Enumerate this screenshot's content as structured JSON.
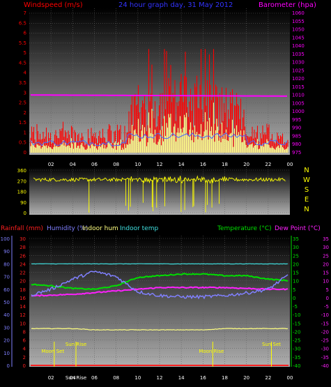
{
  "colors": {
    "wind": "#ff0000",
    "gust": "#ffff88",
    "avg": "#4466ff",
    "baro": "#ff00ff",
    "title": "#3333ff",
    "dir": "#ffff00",
    "rain": "#ff2020",
    "hum": "#8080ff",
    "inhum": "#ffff80",
    "intemp": "#40e0e0",
    "temp": "#00e000",
    "dew": "#ff20ff",
    "grid": "#606060",
    "axis": "#ffffff"
  },
  "header": {
    "left": "Windspeed (m/s)",
    "center": "24 hour graph day, 31 May 2012",
    "right": "Barometer (hpa)"
  },
  "hours": [
    "02",
    "04",
    "06",
    "08",
    "10",
    "12",
    "14",
    "16",
    "18",
    "20",
    "22",
    "00"
  ],
  "panel1": {
    "left_ticks": [
      "7",
      "6.5",
      "6",
      "5.5",
      "5",
      "4.5",
      "4",
      "3.5",
      "3",
      "2.5",
      "2",
      "1.5",
      "1",
      "0.5",
      "0"
    ],
    "right_ticks": [
      "1060",
      "1055",
      "1050",
      "1045",
      "1040",
      "1035",
      "1030",
      "1025",
      "1020",
      "1015",
      "1010",
      "1005",
      "1000",
      "995",
      "990",
      "985",
      "980",
      "975"
    ],
    "barometer": 1010
  },
  "panel2": {
    "left_ticks": [
      "360",
      "270",
      "180",
      "90",
      "0"
    ],
    "compass": [
      "N",
      "W",
      "S",
      "E",
      "N"
    ],
    "mean_dir": 280
  },
  "panel3": {
    "labels": {
      "rain": "Rainfall (mm)",
      "hum": "Humidity (%)",
      "inhum": "Indoor hum",
      "intemp": "Indoor temp",
      "temp": "Temperature (°C)",
      "dew": "Dew Point (°C)"
    },
    "hum_ticks": [
      "100",
      "90",
      "80",
      "70",
      "60",
      "50",
      "40",
      "30",
      "20",
      "10",
      "0"
    ],
    "rain_ticks": [
      "30",
      "28",
      "26",
      "24",
      "22",
      "20",
      "18",
      "16",
      "14",
      "12",
      "10",
      "8",
      "6",
      "4",
      "2",
      "0"
    ],
    "temp_ticks": [
      "35",
      "30",
      "25",
      "20",
      "15",
      "10",
      "5",
      "0",
      "-5",
      "-10",
      "-15",
      "-20",
      "-25",
      "-30",
      "-35",
      "-40"
    ],
    "events": [
      {
        "label": "Moon Set",
        "hour": 2.3
      },
      {
        "label": "Sun Rise",
        "hour": 4.3
      },
      {
        "label": "Moon Rise",
        "hour": 16.9
      },
      {
        "label": "Sun Set",
        "hour": 22.3
      }
    ],
    "bottom_special": "Sun Rise"
  },
  "chart_data": {
    "type": "line",
    "x": [
      "00",
      "02",
      "04",
      "06",
      "08",
      "10",
      "12",
      "14",
      "16",
      "18",
      "20",
      "22",
      "00"
    ],
    "series": [
      {
        "name": "Temperature (°C)",
        "values": [
          8,
          7,
          5.5,
          5,
          7,
          12,
          13,
          14,
          14,
          13,
          13,
          11,
          10
        ]
      },
      {
        "name": "Dew Point (°C)",
        "values": [
          1,
          1.5,
          2,
          3,
          4,
          5,
          6,
          6,
          6,
          6,
          5.5,
          5,
          5
        ]
      },
      {
        "name": "Humidity (%)",
        "values": [
          55,
          60,
          68,
          74,
          70,
          58,
          55,
          54,
          54,
          55,
          57,
          60,
          72
        ]
      },
      {
        "name": "Indoor hum",
        "values": [
          29,
          29,
          29,
          28,
          28,
          28,
          28,
          28,
          28,
          29,
          29,
          29,
          29
        ]
      },
      {
        "name": "Indoor temp",
        "values": [
          20,
          20,
          20,
          20,
          20,
          20,
          20,
          20,
          20,
          20,
          20,
          20,
          20
        ]
      },
      {
        "name": "Rainfall (mm)",
        "values": [
          0,
          0,
          0,
          0,
          0,
          0,
          0,
          0,
          0,
          0,
          0,
          0,
          0
        ]
      },
      {
        "name": "Barometer (hpa)",
        "values": [
          1010,
          1010,
          1010,
          1010,
          1010,
          1010,
          1010,
          1009,
          1009,
          1009,
          1009,
          1009,
          1009
        ]
      }
    ]
  }
}
